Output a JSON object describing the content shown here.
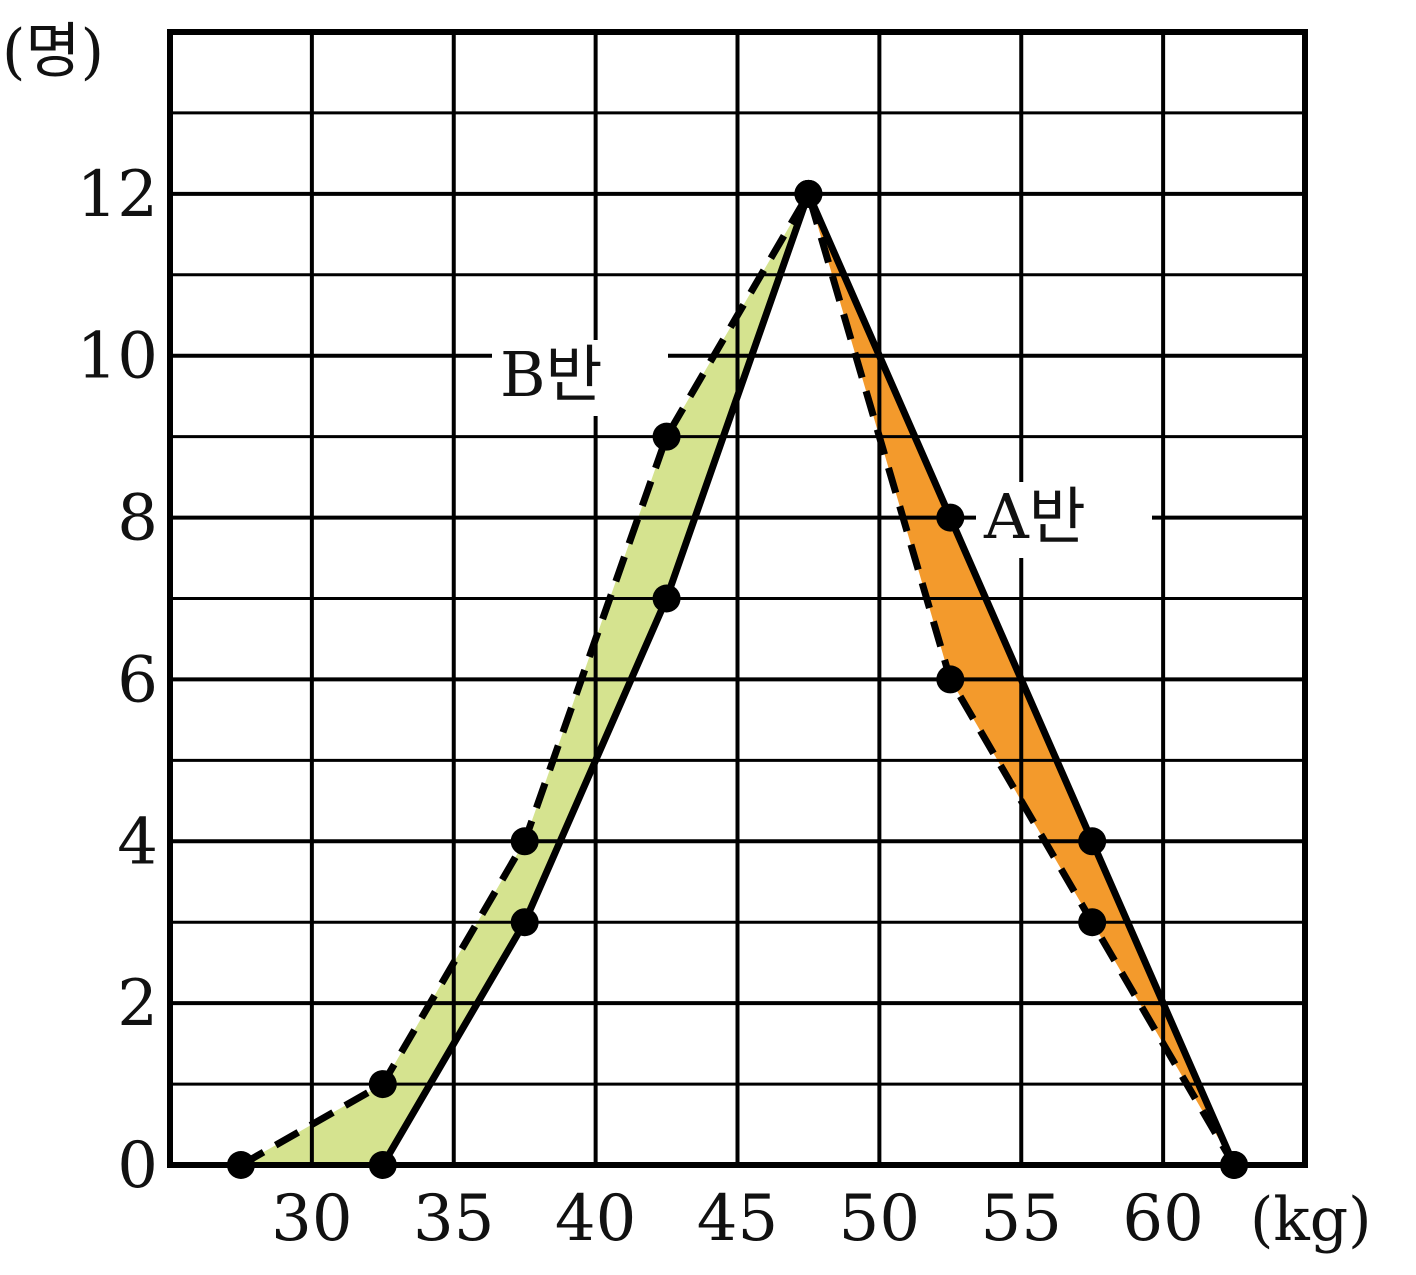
{
  "chart_data": {
    "type": "line",
    "title": "",
    "xlabel": "(kg)",
    "ylabel": "(명)",
    "x_ticks": [
      "30",
      "35",
      "40",
      "45",
      "50",
      "55",
      "60"
    ],
    "y_ticks": [
      "0",
      "2",
      "4",
      "6",
      "8",
      "10",
      "12"
    ],
    "xlim": [
      25,
      62.5
    ],
    "ylim": [
      0,
      14
    ],
    "grid": true,
    "series": [
      {
        "name": "A반",
        "line_style": "solid",
        "x": [
          32.5,
          37.5,
          42.5,
          47.5,
          52.5,
          57.5,
          62.5
        ],
        "values": [
          0,
          3,
          7,
          12,
          8,
          4,
          0
        ]
      },
      {
        "name": "B반",
        "line_style": "dashed",
        "x": [
          27.5,
          32.5,
          37.5,
          42.5,
          47.5,
          52.5,
          57.5,
          62.5
        ],
        "values": [
          0,
          1,
          4,
          9,
          12,
          6,
          3,
          0
        ]
      }
    ],
    "colors": {
      "fill_b_above_a": "#d5e38f",
      "fill_a_above_b": "#f39a2c",
      "lines": "#000000",
      "grid": "#000000"
    }
  }
}
